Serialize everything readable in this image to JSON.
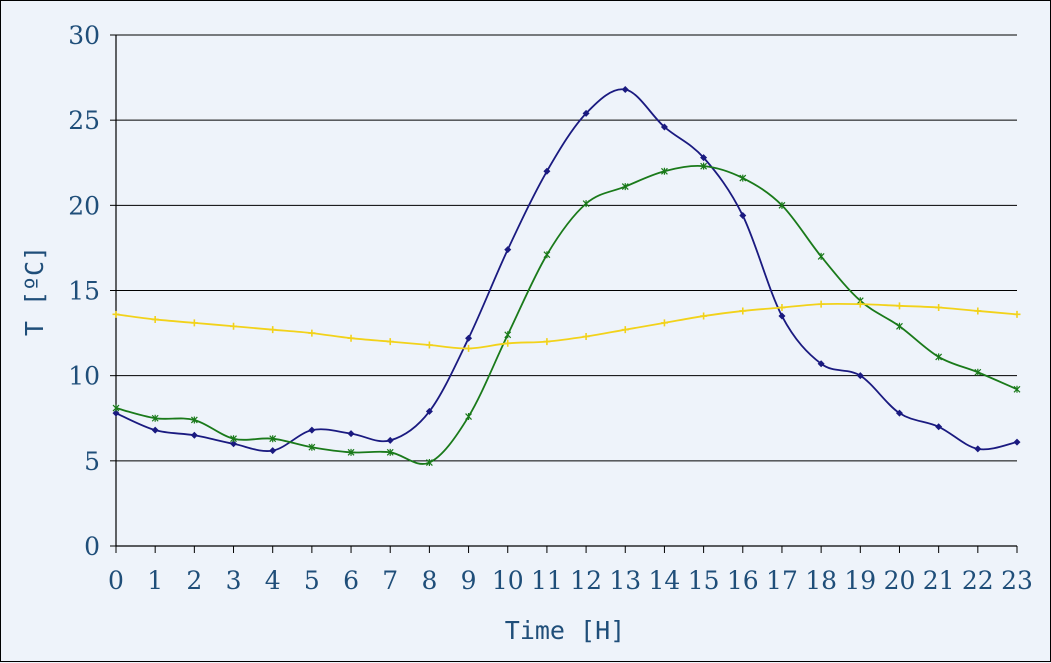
{
  "chart_data": {
    "type": "line",
    "title": "",
    "xlabel": "Time [H]",
    "ylabel": "T [ºC]",
    "xlim": [
      0,
      23
    ],
    "ylim": [
      0,
      30
    ],
    "x": [
      0,
      1,
      2,
      3,
      4,
      5,
      6,
      7,
      8,
      9,
      10,
      11,
      12,
      13,
      14,
      15,
      16,
      17,
      18,
      19,
      20,
      21,
      22,
      23
    ],
    "x_ticks": [
      "0",
      "1",
      "2",
      "3",
      "4",
      "5",
      "6",
      "7",
      "8",
      "9",
      "10",
      "11",
      "12",
      "13",
      "14",
      "15",
      "16",
      "17",
      "18",
      "19",
      "20",
      "21",
      "22",
      "23"
    ],
    "y_ticks": [
      "0",
      "5",
      "10",
      "15",
      "20",
      "25",
      "30"
    ],
    "grid": "horizontal",
    "legend": "none",
    "series": [
      {
        "color": "#1a1a80",
        "marker": "diamond",
        "values": [
          7.8,
          6.8,
          6.5,
          6.0,
          5.6,
          6.8,
          6.6,
          6.2,
          7.9,
          12.2,
          17.4,
          22.0,
          25.4,
          26.8,
          24.6,
          22.8,
          19.4,
          13.5,
          10.7,
          10.0,
          7.8,
          7.0,
          5.7,
          6.1
        ]
      },
      {
        "color": "#1a7a1a",
        "marker": "star",
        "values": [
          8.1,
          7.5,
          7.4,
          6.3,
          6.3,
          5.8,
          5.5,
          5.5,
          4.9,
          7.6,
          12.4,
          17.1,
          20.1,
          21.1,
          22.0,
          22.3,
          21.6,
          20.0,
          17.0,
          14.4,
          12.9,
          11.1,
          10.2,
          9.2
        ]
      },
      {
        "color": "#f2d21a",
        "marker": "cross",
        "values": [
          13.6,
          13.3,
          13.1,
          12.9,
          12.7,
          12.5,
          12.2,
          12.0,
          11.8,
          11.6,
          11.9,
          12.0,
          12.3,
          12.7,
          13.1,
          13.5,
          13.8,
          14.0,
          14.2,
          14.2,
          14.1,
          14.0,
          13.8,
          13.6
        ]
      }
    ]
  }
}
